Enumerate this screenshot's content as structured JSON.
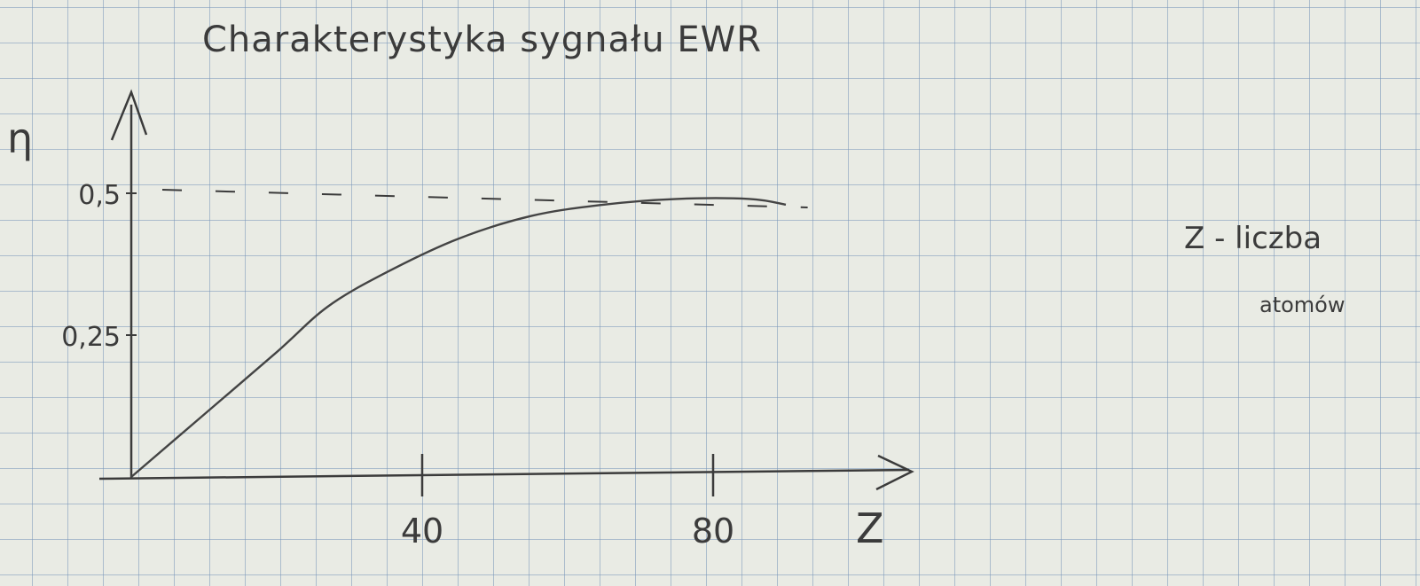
{
  "title": "Charakterystyka sygnału EWR",
  "note": {
    "line1": "Z - liczba",
    "line2": "atomów"
  },
  "chart_data": {
    "type": "line",
    "title": "Charakterystyka sygnału EWR",
    "xlabel": "Z",
    "ylabel": "η",
    "x_ticks": [
      "40",
      "80"
    ],
    "y_ticks": [
      "0,25",
      "0,5"
    ],
    "xlim": [
      0,
      100
    ],
    "ylim": [
      0,
      0.62
    ],
    "asymptote": 0.5,
    "series": [
      {
        "x": [
          0,
          10,
          20,
          27,
          35,
          45,
          55,
          65,
          75,
          85,
          90
        ],
        "y": [
          0,
          0.11,
          0.22,
          0.3,
          0.36,
          0.42,
          0.46,
          0.48,
          0.49,
          0.49,
          0.48
        ]
      }
    ],
    "grid": true,
    "colors": {
      "ink": "#3b3b3b",
      "paper": "#e9ebe4",
      "grid": "#7896b9"
    }
  }
}
